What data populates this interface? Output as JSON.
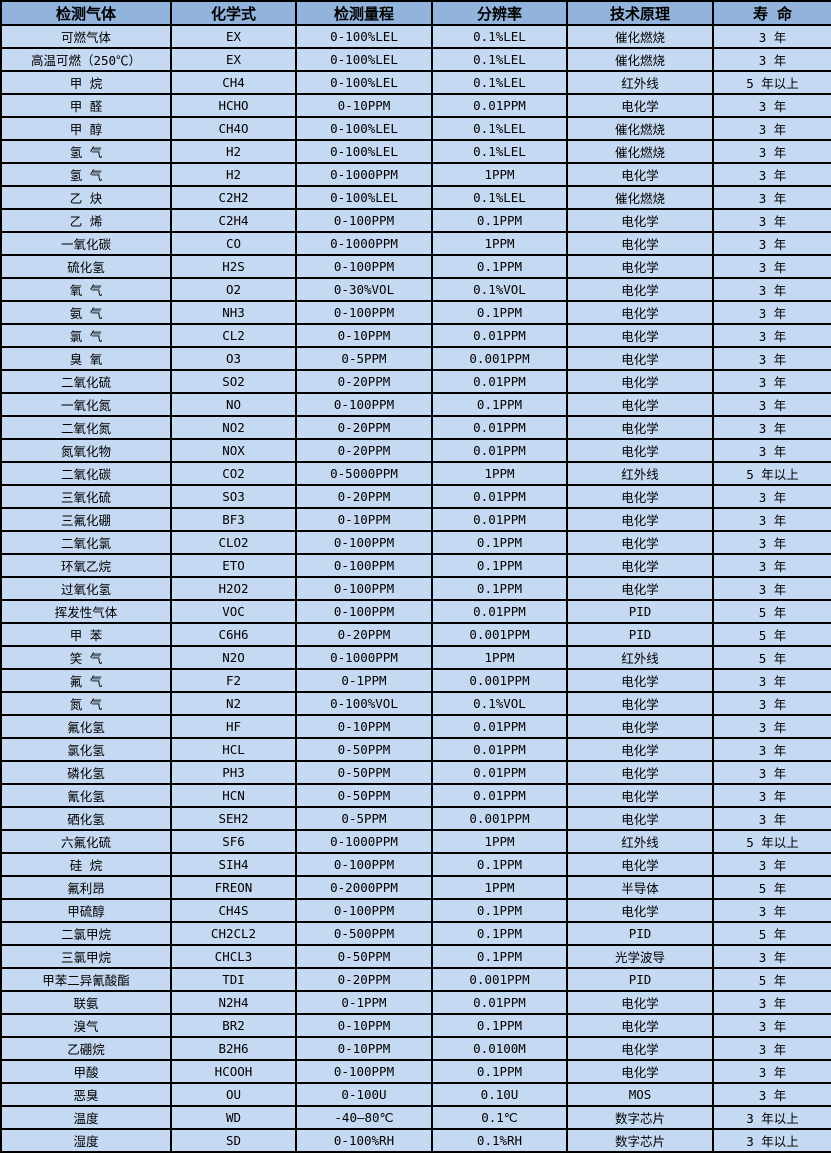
{
  "table": {
    "title": "gas-detector-specification-table",
    "columns": [
      "检测气体",
      "化学式",
      "检测量程",
      "分辨率",
      "技术原理",
      "寿 命"
    ],
    "colors": {
      "header_bg": "#92B4DC",
      "row_bg": "#C6D9F2",
      "border": "#000000",
      "text": "#000000"
    },
    "rows": [
      [
        "可燃气体",
        "EX",
        "0-100%LEL",
        "0.1%LEL",
        "催化燃烧",
        "3 年"
      ],
      [
        "高温可燃（250℃）",
        "EX",
        "0-100%LEL",
        "0.1%LEL",
        "催化燃烧",
        "3 年"
      ],
      [
        "甲 烷",
        "CH4",
        "0-100%LEL",
        "0.1%LEL",
        "红外线",
        "5 年以上"
      ],
      [
        "甲 醛",
        "HCHO",
        "0-10PPM",
        "0.01PPM",
        "电化学",
        "3 年"
      ],
      [
        "甲 醇",
        "CH4O",
        "0-100%LEL",
        "0.1%LEL",
        "催化燃烧",
        "3 年"
      ],
      [
        "氢 气",
        "H2",
        "0-100%LEL",
        "0.1%LEL",
        "催化燃烧",
        "3 年"
      ],
      [
        "氢 气",
        "H2",
        "0-1000PPM",
        "1PPM",
        "电化学",
        "3 年"
      ],
      [
        "乙 炔",
        "C2H2",
        "0-100%LEL",
        "0.1%LEL",
        "催化燃烧",
        "3 年"
      ],
      [
        "乙 烯",
        "C2H4",
        "0-100PPM",
        "0.1PPM",
        "电化学",
        "3 年"
      ],
      [
        "一氧化碳",
        "CO",
        "0-1000PPM",
        "1PPM",
        "电化学",
        "3 年"
      ],
      [
        "硫化氢",
        "H2S",
        "0-100PPM",
        "0.1PPM",
        "电化学",
        "3 年"
      ],
      [
        "氧 气",
        "O2",
        "0-30%VOL",
        "0.1%VOL",
        "电化学",
        "3 年"
      ],
      [
        "氨 气",
        "NH3",
        "0-100PPM",
        "0.1PPM",
        "电化学",
        "3 年"
      ],
      [
        "氯 气",
        "CL2",
        "0-10PPM",
        "0.01PPM",
        "电化学",
        "3 年"
      ],
      [
        "臭 氧",
        "O3",
        "0-5PPM",
        "0.001PPM",
        "电化学",
        "3 年"
      ],
      [
        "二氧化硫",
        "SO2",
        "0-20PPM",
        "0.01PPM",
        "电化学",
        "3 年"
      ],
      [
        "一氧化氮",
        "NO",
        "0-100PPM",
        "0.1PPM",
        "电化学",
        "3 年"
      ],
      [
        "二氧化氮",
        "NO2",
        "0-20PPM",
        "0.01PPM",
        "电化学",
        "3 年"
      ],
      [
        "氮氧化物",
        "NOX",
        "0-20PPM",
        "0.01PPM",
        "电化学",
        "3 年"
      ],
      [
        "二氧化碳",
        "CO2",
        "0-5000PPM",
        "1PPM",
        "红外线",
        "5 年以上"
      ],
      [
        "三氧化硫",
        "SO3",
        "0-20PPM",
        "0.01PPM",
        "电化学",
        "3 年"
      ],
      [
        "三氟化硼",
        "BF3",
        "0-10PPM",
        "0.01PPM",
        "电化学",
        "3 年"
      ],
      [
        "二氧化氯",
        "CLO2",
        "0-100PPM",
        "0.1PPM",
        "电化学",
        "3 年"
      ],
      [
        "环氧乙烷",
        "ETO",
        "0-100PPM",
        "0.1PPM",
        "电化学",
        "3 年"
      ],
      [
        "过氧化氢",
        "H2O2",
        "0-100PPM",
        "0.1PPM",
        "电化学",
        "3 年"
      ],
      [
        "挥发性气体",
        "VOC",
        "0-100PPM",
        "0.01PPM",
        "PID",
        "5 年"
      ],
      [
        "甲 苯",
        "C6H6",
        "0-20PPM",
        "0.001PPM",
        "PID",
        "5 年"
      ],
      [
        "笑 气",
        "N2O",
        "0-1000PPM",
        "1PPM",
        "红外线",
        "5 年"
      ],
      [
        "氟 气",
        "F2",
        "0-1PPM",
        "0.001PPM",
        "电化学",
        "3 年"
      ],
      [
        "氮 气",
        "N2",
        "0-100%VOL",
        "0.1%VOL",
        "电化学",
        "3 年"
      ],
      [
        "氟化氢",
        "HF",
        "0-10PPM",
        "0.01PPM",
        "电化学",
        "3 年"
      ],
      [
        "氯化氢",
        "HCL",
        "0-50PPM",
        "0.01PPM",
        "电化学",
        "3 年"
      ],
      [
        "磷化氢",
        "PH3",
        "0-50PPM",
        "0.01PPM",
        "电化学",
        "3 年"
      ],
      [
        "氰化氢",
        "HCN",
        "0-50PPM",
        "0.01PPM",
        "电化学",
        "3 年"
      ],
      [
        "硒化氢",
        "SEH2",
        "0-5PPM",
        "0.001PPM",
        "电化学",
        "3 年"
      ],
      [
        "六氟化硫",
        "SF6",
        "0-1000PPM",
        "1PPM",
        "红外线",
        "5 年以上"
      ],
      [
        "硅 烷",
        "SIH4",
        "0-100PPM",
        "0.1PPM",
        "电化学",
        "3 年"
      ],
      [
        "氟利昂",
        "FREON",
        "0-2000PPM",
        "1PPM",
        "半导体",
        "5 年"
      ],
      [
        "甲硫醇",
        "CH4S",
        "0-100PPM",
        "0.1PPM",
        "电化学",
        "3 年"
      ],
      [
        "二氯甲烷",
        "CH2CL2",
        "0-500PPM",
        "0.1PPM",
        "PID",
        "5 年"
      ],
      [
        "三氯甲烷",
        "CHCL3",
        "0-50PPM",
        "0.1PPM",
        "光学波导",
        "3 年"
      ],
      [
        "甲苯二异氰酸酯",
        "TDI",
        "0-20PPM",
        "0.001PPM",
        "PID",
        "5 年"
      ],
      [
        "联氨",
        "N2H4",
        "0-1PPM",
        "0.01PPM",
        "电化学",
        "3 年"
      ],
      [
        "溴气",
        "BR2",
        "0-10PPM",
        "0.1PPM",
        "电化学",
        "3 年"
      ],
      [
        "乙硼烷",
        "B2H6",
        "0-10PPM",
        "0.0100M",
        "电化学",
        "3 年"
      ],
      [
        "甲酸",
        "HCOOH",
        "0-100PPM",
        "0.1PPM",
        "电化学",
        "3 年"
      ],
      [
        "恶臭",
        "OU",
        "0-100U",
        "0.10U",
        "MOS",
        "3 年"
      ],
      [
        "温度",
        "WD",
        "-40—80℃",
        "0.1℃",
        "数字芯片",
        "3 年以上"
      ],
      [
        "湿度",
        "SD",
        "0-100%RH",
        "0.1%RH",
        "数字芯片",
        "3 年以上"
      ]
    ]
  }
}
